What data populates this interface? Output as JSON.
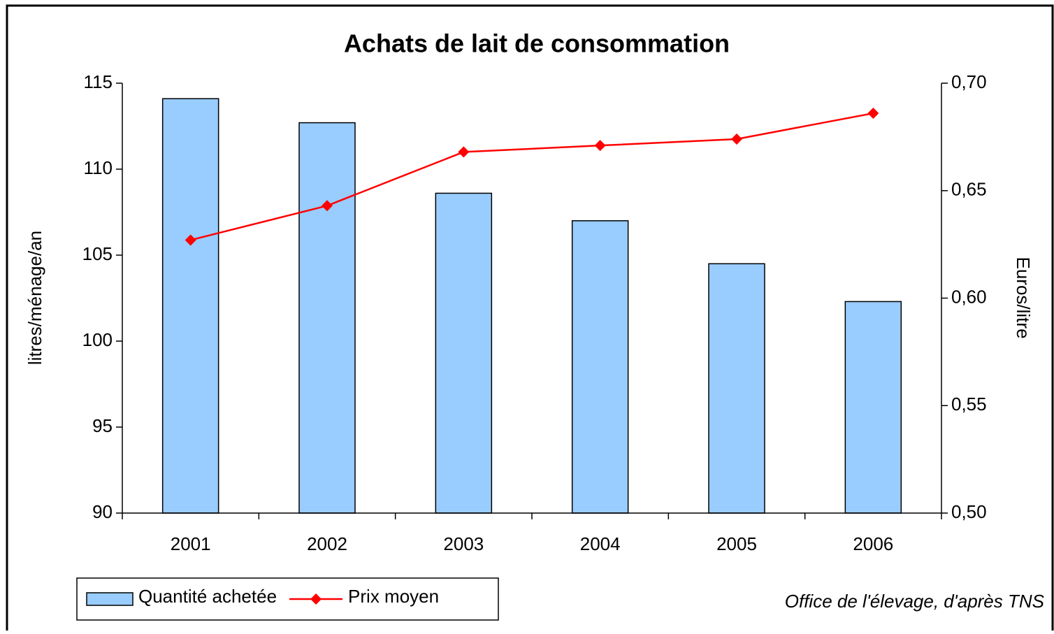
{
  "chart_data": {
    "type": "bar_line",
    "title": "Achats de lait de consommation",
    "y_label": "litres/ménage/an",
    "y2_label": "Euros/litre",
    "source": "Office de l'élevage, d'après TNS",
    "categories": [
      "2001",
      "2002",
      "2003",
      "2004",
      "2005",
      "2006"
    ],
    "series": [
      {
        "name": "Quantité achetée",
        "type": "bar",
        "color": "#99ccff",
        "values": [
          114.1,
          112.7,
          108.6,
          107.0,
          104.5,
          102.3
        ]
      },
      {
        "name": "Prix moyen",
        "type": "line",
        "color": "#ff0000",
        "axis": "y2",
        "values": [
          0.627,
          0.643,
          0.668,
          0.671,
          0.674,
          0.686
        ]
      }
    ],
    "ylim": [
      90,
      115
    ],
    "yticks": [
      90,
      95,
      100,
      105,
      110,
      115
    ],
    "y2lim": [
      0.5,
      0.7
    ],
    "y2ticks": [
      {
        "value": 0.5,
        "label": "0,50"
      },
      {
        "value": 0.55,
        "label": "0,55"
      },
      {
        "value": 0.6,
        "label": "0,60"
      },
      {
        "value": 0.65,
        "label": "0,65"
      },
      {
        "value": 0.7,
        "label": "0,70"
      }
    ]
  }
}
